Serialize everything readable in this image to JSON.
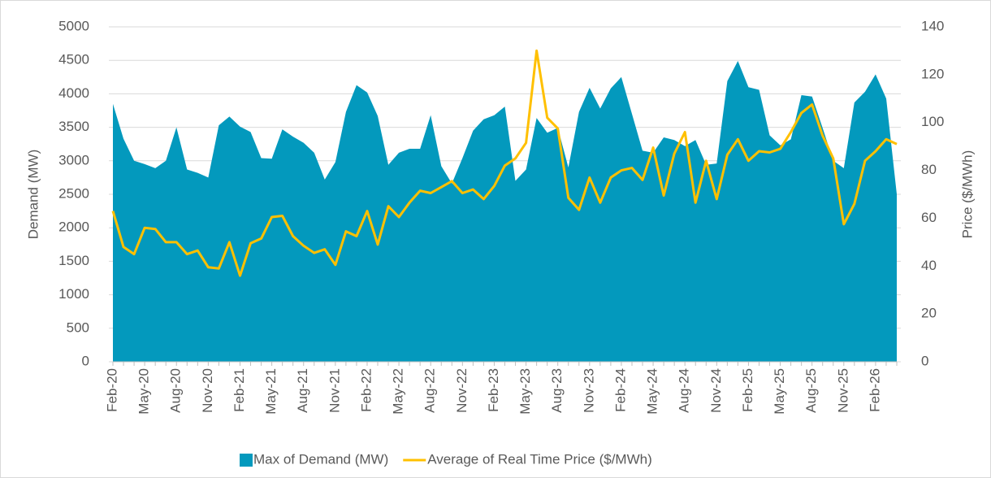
{
  "chart_data": {
    "type": "combo",
    "y_label": "Demand (MW)",
    "y2_label": "Price ($/MWh)",
    "categories": [
      "Feb-20",
      null,
      null,
      "May-20",
      null,
      null,
      "Aug-20",
      null,
      null,
      "Nov-20",
      null,
      null,
      "Feb-21",
      null,
      null,
      "May-21",
      null,
      null,
      "Aug-21",
      null,
      null,
      "Nov-21",
      null,
      null,
      "Feb-22",
      null,
      null,
      "May-22",
      null,
      null,
      "Aug-22",
      null,
      null,
      "Nov-22",
      null,
      null,
      "Feb-23",
      null,
      null,
      "May-23",
      null,
      null,
      "Aug-23",
      null,
      null,
      "Nov-23",
      null,
      null,
      "Feb-24",
      null,
      null,
      "May-24",
      null,
      null,
      "Aug-24",
      null,
      null,
      "Nov-24",
      null,
      null,
      "Feb-25",
      null,
      null,
      "May-25",
      null,
      null,
      "Aug-25",
      null,
      null,
      "Nov-25",
      null,
      null,
      "Feb-26",
      null,
      null
    ],
    "series": [
      {
        "name": "Max of Demand (MW)",
        "type": "area",
        "color": "#0399bd",
        "values": [
          3850,
          3330,
          3000,
          2950,
          2890,
          3000,
          3500,
          2870,
          2820,
          2750,
          3530,
          3660,
          3510,
          3430,
          3040,
          3030,
          3470,
          3360,
          3270,
          3120,
          2720,
          2980,
          3730,
          4130,
          4020,
          3670,
          2940,
          3120,
          3180,
          3180,
          3680,
          2920,
          2660,
          3040,
          3450,
          3620,
          3680,
          3810,
          2700,
          2870,
          3640,
          3420,
          3490,
          2900,
          3730,
          4090,
          3780,
          4080,
          4250,
          3700,
          3150,
          3120,
          3350,
          3310,
          3220,
          3310,
          2940,
          2960,
          4190,
          4490,
          4100,
          4060,
          3380,
          3230,
          3320,
          3980,
          3960,
          3490,
          3000,
          2890,
          3870,
          4030,
          4290,
          3930,
          2500
        ]
      },
      {
        "name": "Average of Real Time Price ($/MWh)",
        "type": "line",
        "color": "#ffc000",
        "axis": "y2",
        "values": [
          63,
          48,
          45,
          56,
          55.5,
          50,
          50,
          45,
          46.5,
          39.5,
          39,
          50,
          36,
          49.5,
          51.5,
          60.5,
          61,
          52.5,
          48.5,
          45.5,
          47,
          40.5,
          54.5,
          52.5,
          63,
          49,
          65,
          60.5,
          66.5,
          71.5,
          70.5,
          73,
          75.5,
          70.5,
          72,
          68,
          73.5,
          82,
          85,
          91.5,
          130,
          102,
          97.5,
          68.5,
          63.5,
          77,
          66.5,
          77,
          80,
          81,
          76,
          89.5,
          69.5,
          87,
          96,
          66.5,
          84,
          68,
          86.5,
          93,
          84,
          88,
          87.5,
          89,
          96,
          104,
          107.5,
          94.5,
          85,
          57.5,
          66,
          84,
          88,
          93,
          91
        ]
      }
    ],
    "ylim": [
      0,
      5000
    ],
    "yticks": [
      0,
      500,
      1000,
      1500,
      2000,
      2500,
      3000,
      3500,
      4000,
      4500,
      5000
    ],
    "y2lim": [
      0,
      140
    ],
    "y2ticks": [
      0,
      20,
      40,
      60,
      80,
      100,
      120,
      140
    ],
    "grid": true,
    "legend": "bottom"
  }
}
